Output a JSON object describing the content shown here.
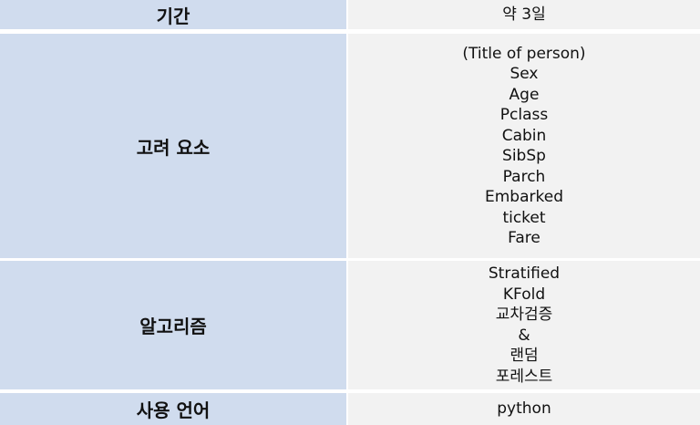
{
  "rows": [
    {
      "label": "기간",
      "values": [
        "약 3일"
      ]
    },
    {
      "label": "고려 요소",
      "values": [
        "(Title of person)",
        "Sex",
        "Age",
        "Pclass",
        "Cabin",
        "SibSp",
        "Parch",
        "Embarked",
        "ticket",
        "Fare"
      ]
    },
    {
      "label": "알고리즘",
      "values": [
        "Stratified",
        "KFold",
        "교차검증",
        "&",
        "랜덤",
        "포레스트"
      ]
    },
    {
      "label": "사용 언어",
      "values": [
        "python"
      ]
    }
  ]
}
